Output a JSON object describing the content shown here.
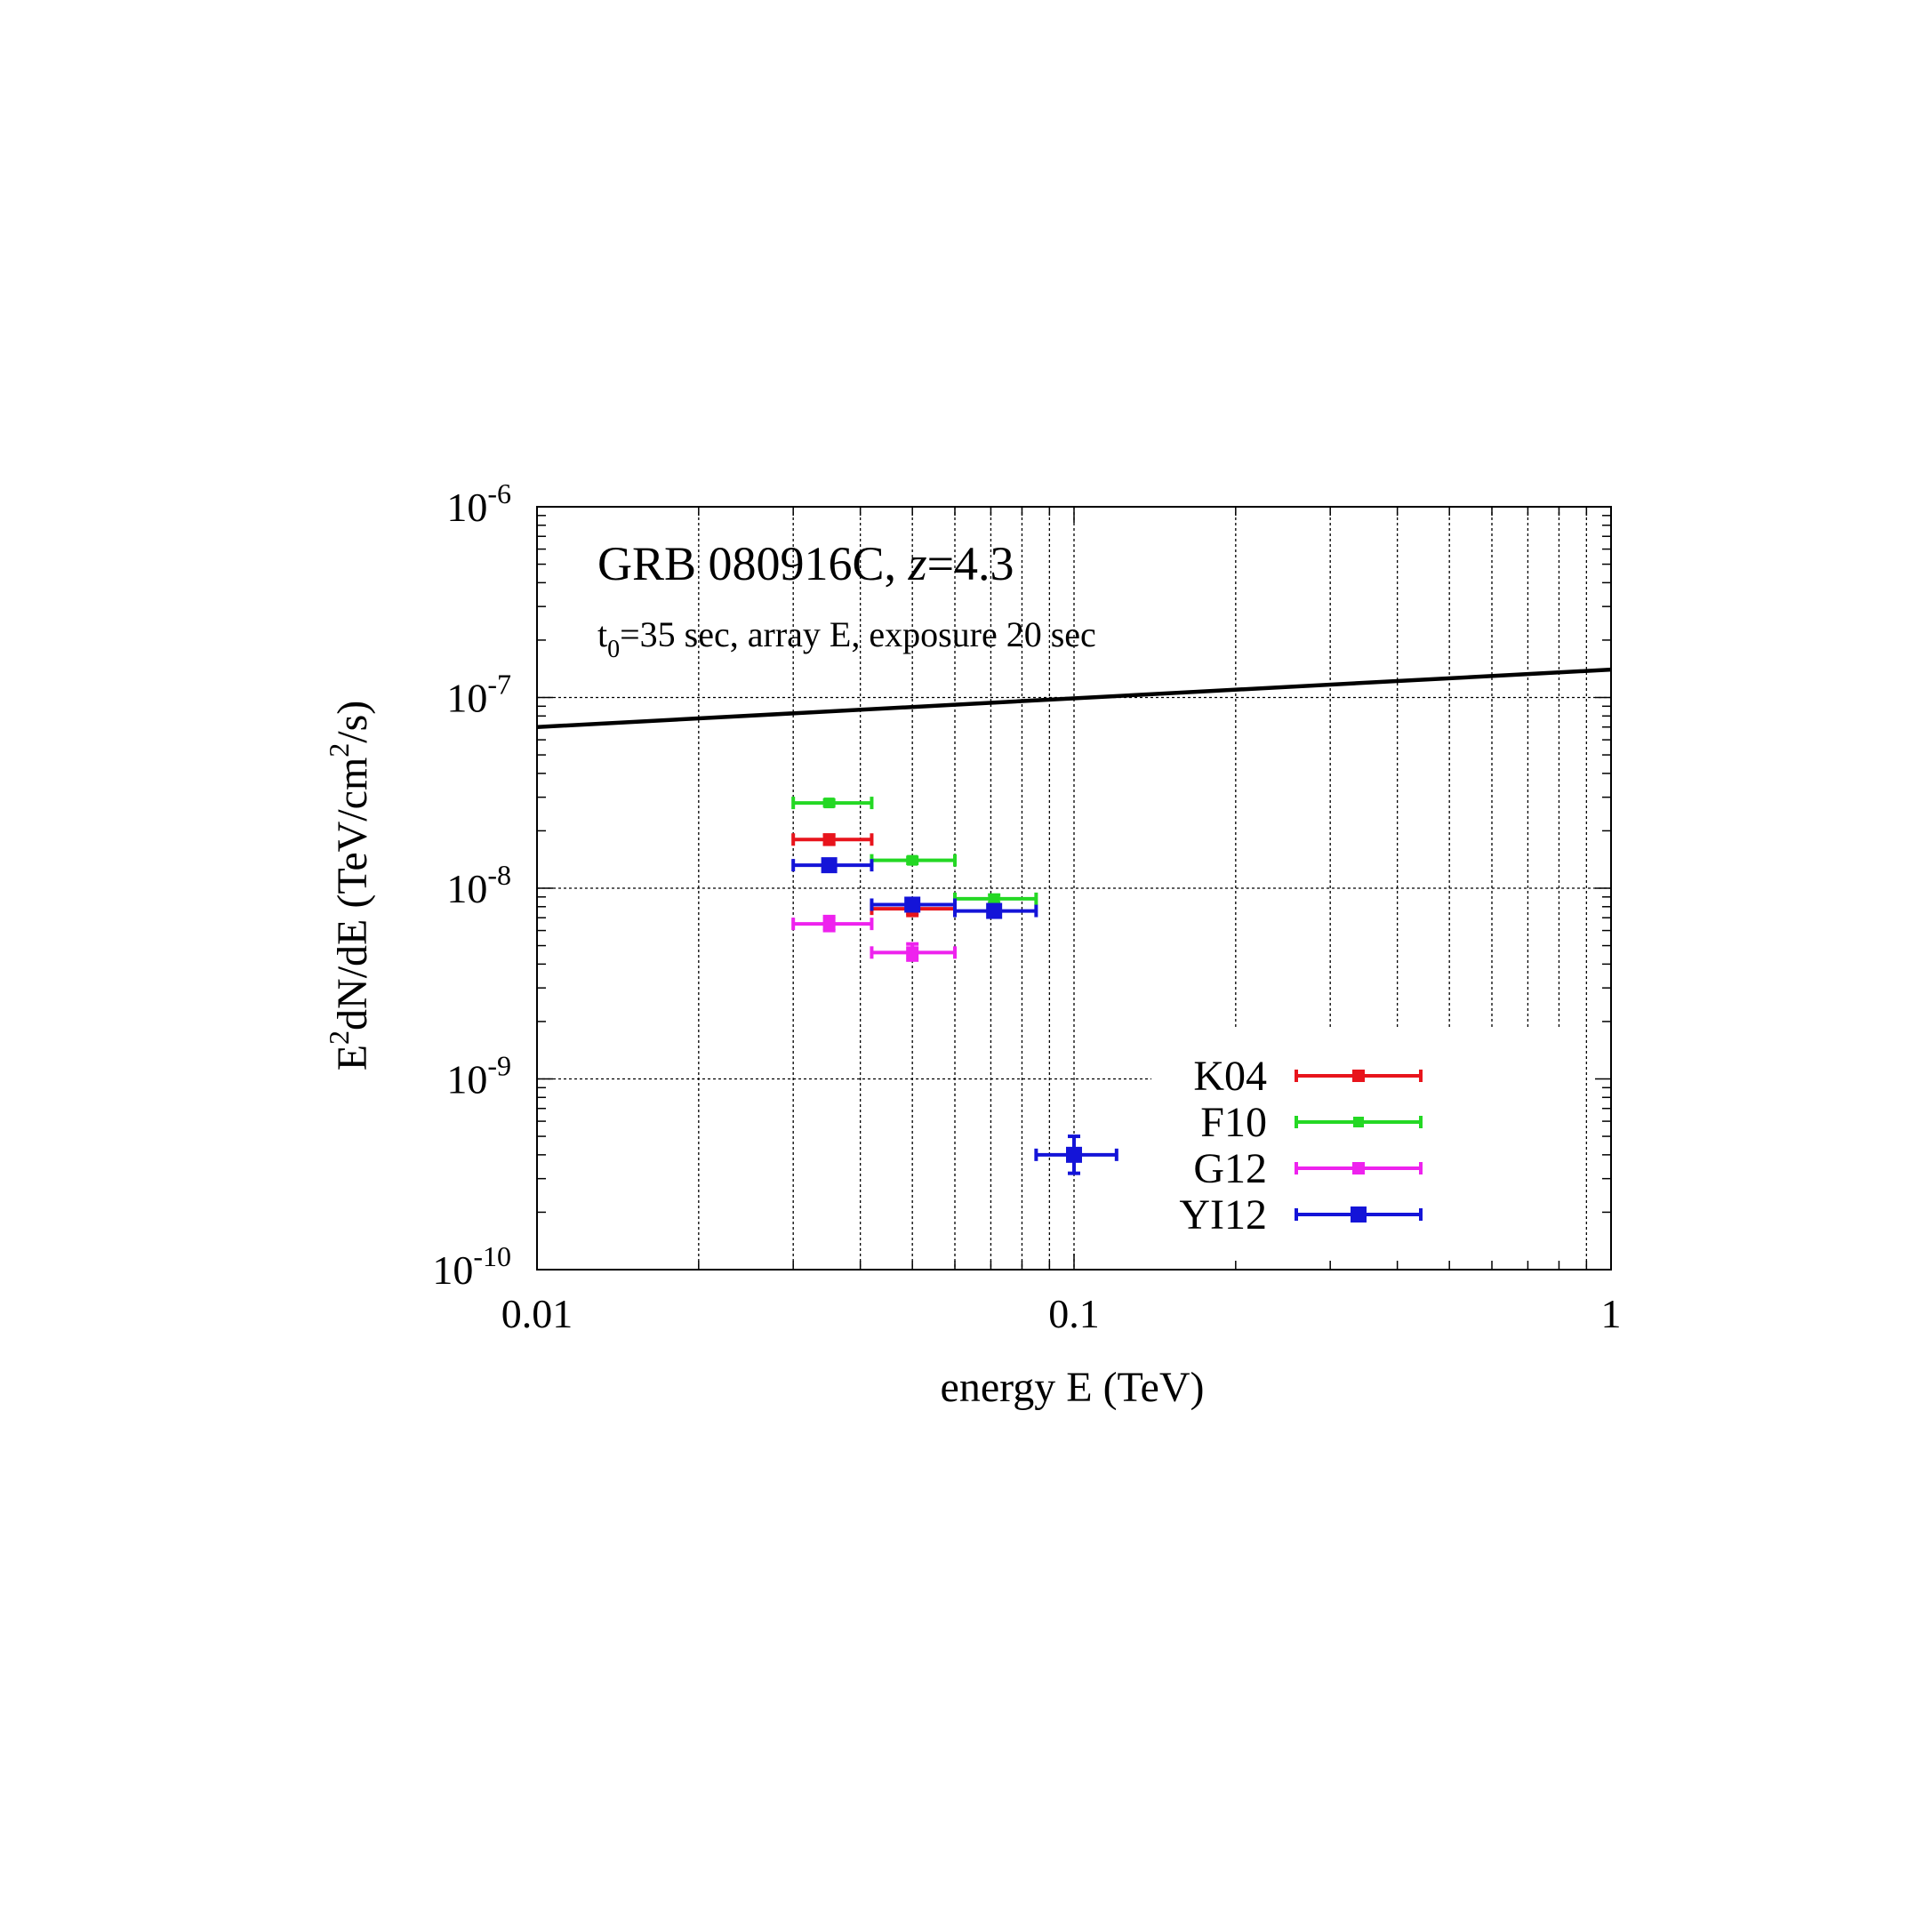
{
  "chart_data": {
    "type": "scatter",
    "title": "GRB 080916C, z=4.3",
    "title_parts": {
      "prefix": "GRB 080916C, ",
      "var": "z",
      "suffix": "=4.3"
    },
    "subtitle_parts": {
      "t": "t",
      "sub": "0",
      "rest": "=35 sec, array E, exposure 20 sec"
    },
    "xlabel": "energy E (TeV)",
    "ylabel_parts": {
      "a": "E",
      "a_sup": "2",
      "b": "dN/dE (TeV/cm",
      "b_sup": "2",
      "c": "/s)"
    },
    "x_scale": "log",
    "y_scale": "log",
    "xlim": [
      0.01,
      1
    ],
    "ylim": [
      1e-10,
      1e-06
    ],
    "grid": true,
    "legend_position": "bottom-right",
    "x_ticks": [
      {
        "value": 0.01,
        "label": "0.01"
      },
      {
        "value": 0.1,
        "label": "0.1"
      },
      {
        "value": 1,
        "label": "1"
      }
    ],
    "y_ticks": [
      {
        "value": 1e-06,
        "base": "10",
        "exp": "-6"
      },
      {
        "value": 1e-07,
        "base": "10",
        "exp": "-7"
      },
      {
        "value": 1e-08,
        "base": "10",
        "exp": "-8"
      },
      {
        "value": 1e-09,
        "base": "10",
        "exp": "-9"
      },
      {
        "value": 1e-10,
        "base": "10",
        "exp": "-10"
      }
    ],
    "line": {
      "x": [
        0.01,
        1
      ],
      "y": [
        7e-08,
        1.4e-07
      ],
      "color": "#000000"
    },
    "series": [
      {
        "name": "K04",
        "color": "#e8141c",
        "marker": "square-small",
        "points": [
          {
            "x": 0.035,
            "xlo": 0.03,
            "xhi": 0.042,
            "y": 1.8e-08,
            "ylo": 1.7e-08,
            "yhi": 1.9e-08
          },
          {
            "x": 0.05,
            "xlo": 0.042,
            "xhi": 0.06,
            "y": 7.8e-09,
            "ylo": 7.2e-09,
            "yhi": 8.4e-09
          }
        ]
      },
      {
        "name": "F10",
        "color": "#24d824",
        "marker": "x-small",
        "points": [
          {
            "x": 0.035,
            "xlo": 0.03,
            "xhi": 0.042,
            "y": 2.8e-08,
            "ylo": 2.7e-08,
            "yhi": 2.9e-08
          },
          {
            "x": 0.05,
            "xlo": 0.042,
            "xhi": 0.06,
            "y": 1.4e-08,
            "ylo": 1.35e-08,
            "yhi": 1.45e-08
          },
          {
            "x": 0.071,
            "xlo": 0.06,
            "xhi": 0.085,
            "y": 8.8e-09,
            "ylo": 8.4e-09,
            "yhi": 9.2e-09
          }
        ]
      },
      {
        "name": "G12",
        "color": "#ee22ee",
        "marker": "square-small",
        "points": [
          {
            "x": 0.035,
            "xlo": 0.03,
            "xhi": 0.042,
            "y": 6.5e-09,
            "ylo": 6e-09,
            "yhi": 7.1e-09
          },
          {
            "x": 0.05,
            "xlo": 0.042,
            "xhi": 0.06,
            "y": 4.6e-09,
            "ylo": 4.2e-09,
            "yhi": 5.1e-09
          }
        ]
      },
      {
        "name": "YI12",
        "color": "#1414d8",
        "marker": "square-large",
        "points": [
          {
            "x": 0.035,
            "xlo": 0.03,
            "xhi": 0.042,
            "y": 1.32e-08,
            "ylo": 1.26e-08,
            "yhi": 1.38e-08
          },
          {
            "x": 0.05,
            "xlo": 0.042,
            "xhi": 0.06,
            "y": 8.2e-09,
            "ylo": 7.8e-09,
            "yhi": 8.6e-09
          },
          {
            "x": 0.071,
            "xlo": 0.06,
            "xhi": 0.085,
            "y": 7.6e-09,
            "ylo": 7.2e-09,
            "yhi": 8e-09
          },
          {
            "x": 0.1,
            "xlo": 0.085,
            "xhi": 0.12,
            "y": 4e-10,
            "ylo": 3.2e-10,
            "yhi": 5e-10
          }
        ]
      }
    ]
  }
}
